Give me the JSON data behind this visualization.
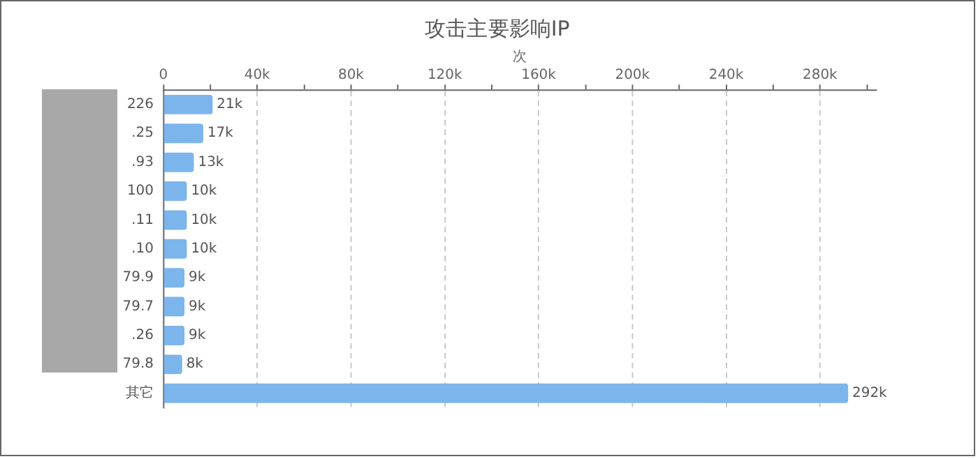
{
  "chart_data": {
    "type": "bar",
    "orientation": "horizontal",
    "title": "攻击主要影响IP",
    "xlabel": "次",
    "categories": [
      "226",
      ".25",
      ".93",
      "100",
      ".11",
      ".10",
      "79.9",
      "79.7",
      ".26",
      "79.8",
      "其它"
    ],
    "values": [
      21000,
      17000,
      13000,
      10000,
      10000,
      10000,
      9000,
      9000,
      9000,
      8000,
      292000
    ],
    "value_labels": [
      "21k",
      "17k",
      "13k",
      "10k",
      "10k",
      "10k",
      "9k",
      "9k",
      "9k",
      "8k",
      "292k"
    ],
    "color": "#7cb5ec",
    "xlim": [
      0,
      304000
    ],
    "xticks": [
      0,
      {
        "value": 20000,
        "label": null
      },
      {
        "value": 40000,
        "label": "40k"
      },
      {
        "value": 60000,
        "label": null
      },
      {
        "value": 80000,
        "label": "80k"
      },
      {
        "value": 100000,
        "label": null
      },
      {
        "value": 120000,
        "label": "120k"
      },
      {
        "value": 140000,
        "label": null
      },
      {
        "value": 160000,
        "label": "160k"
      },
      {
        "value": 180000,
        "label": null
      },
      {
        "value": 200000,
        "label": "200k"
      },
      {
        "value": 220000,
        "label": null
      },
      {
        "value": 240000,
        "label": "240k"
      },
      {
        "value": 260000,
        "label": null
      },
      {
        "value": 280000,
        "label": "280k"
      },
      {
        "value": 300000,
        "label": null
      }
    ],
    "grid": "x"
  }
}
